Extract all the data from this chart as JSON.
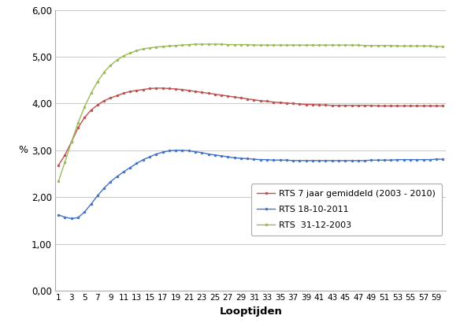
{
  "title": "",
  "xlabel": "Looptijden",
  "ylabel": "%",
  "ylim": [
    0.0,
    6.0
  ],
  "yticks": [
    0.0,
    1.0,
    2.0,
    3.0,
    4.0,
    5.0,
    6.0
  ],
  "ytick_labels": [
    "0,00",
    "1,00",
    "2,00",
    "3,00",
    "4,00",
    "5,00",
    "6,00"
  ],
  "xticks": [
    1,
    3,
    5,
    7,
    9,
    11,
    13,
    15,
    17,
    19,
    21,
    23,
    25,
    27,
    29,
    31,
    33,
    35,
    37,
    39,
    41,
    43,
    45,
    47,
    49,
    51,
    53,
    55,
    57,
    59
  ],
  "background_color": "#ffffff",
  "grid_color": "#c8c8c8",
  "series": [
    {
      "label": "RTS 7 jaar gemiddeld (2003 - 2010)",
      "color": "#c0504d",
      "marker": "o",
      "markersize": 2.5,
      "linewidth": 1.0,
      "data": [
        2.68,
        2.9,
        3.18,
        3.48,
        3.7,
        3.86,
        3.97,
        4.06,
        4.12,
        4.17,
        4.22,
        4.26,
        4.28,
        4.3,
        4.32,
        4.33,
        4.33,
        4.32,
        4.31,
        4.3,
        4.28,
        4.26,
        4.24,
        4.22,
        4.2,
        4.18,
        4.16,
        4.14,
        4.12,
        4.1,
        4.08,
        4.06,
        4.05,
        4.03,
        4.02,
        4.01,
        4.0,
        3.99,
        3.98,
        3.98,
        3.97,
        3.97,
        3.96,
        3.96,
        3.96,
        3.96,
        3.96,
        3.96,
        3.96,
        3.95,
        3.95,
        3.95,
        3.95,
        3.95,
        3.95,
        3.95,
        3.95,
        3.95,
        3.95,
        3.95
      ]
    },
    {
      "label": "RTS 18-10-2011",
      "color": "#4472c4",
      "marker": "o",
      "markersize": 2.5,
      "linewidth": 1.0,
      "data": [
        1.62,
        1.57,
        1.54,
        1.56,
        1.68,
        1.85,
        2.03,
        2.19,
        2.33,
        2.44,
        2.54,
        2.63,
        2.72,
        2.8,
        2.86,
        2.92,
        2.96,
        2.99,
        3.0,
        3.0,
        2.99,
        2.97,
        2.95,
        2.92,
        2.9,
        2.88,
        2.86,
        2.84,
        2.83,
        2.82,
        2.81,
        2.8,
        2.8,
        2.79,
        2.79,
        2.79,
        2.78,
        2.78,
        2.78,
        2.78,
        2.78,
        2.78,
        2.78,
        2.78,
        2.78,
        2.78,
        2.78,
        2.78,
        2.79,
        2.79,
        2.79,
        2.79,
        2.8,
        2.8,
        2.8,
        2.8,
        2.8,
        2.8,
        2.81,
        2.81
      ]
    },
    {
      "label": "RTS  31-12-2003",
      "color": "#9bbb59",
      "marker": "o",
      "markersize": 2.5,
      "linewidth": 1.0,
      "data": [
        2.34,
        2.75,
        3.18,
        3.58,
        3.93,
        4.22,
        4.47,
        4.67,
        4.82,
        4.93,
        5.02,
        5.08,
        5.13,
        5.17,
        5.19,
        5.21,
        5.22,
        5.23,
        5.24,
        5.25,
        5.26,
        5.27,
        5.27,
        5.27,
        5.27,
        5.27,
        5.26,
        5.26,
        5.26,
        5.26,
        5.25,
        5.25,
        5.25,
        5.25,
        5.25,
        5.25,
        5.25,
        5.25,
        5.25,
        5.25,
        5.25,
        5.25,
        5.25,
        5.25,
        5.25,
        5.25,
        5.25,
        5.24,
        5.24,
        5.24,
        5.24,
        5.24,
        5.23,
        5.23,
        5.23,
        5.23,
        5.23,
        5.23,
        5.22,
        5.22
      ]
    }
  ],
  "legend_order": [
    0,
    1,
    2
  ],
  "figsize": [
    5.84,
    4.24
  ],
  "dpi": 100
}
